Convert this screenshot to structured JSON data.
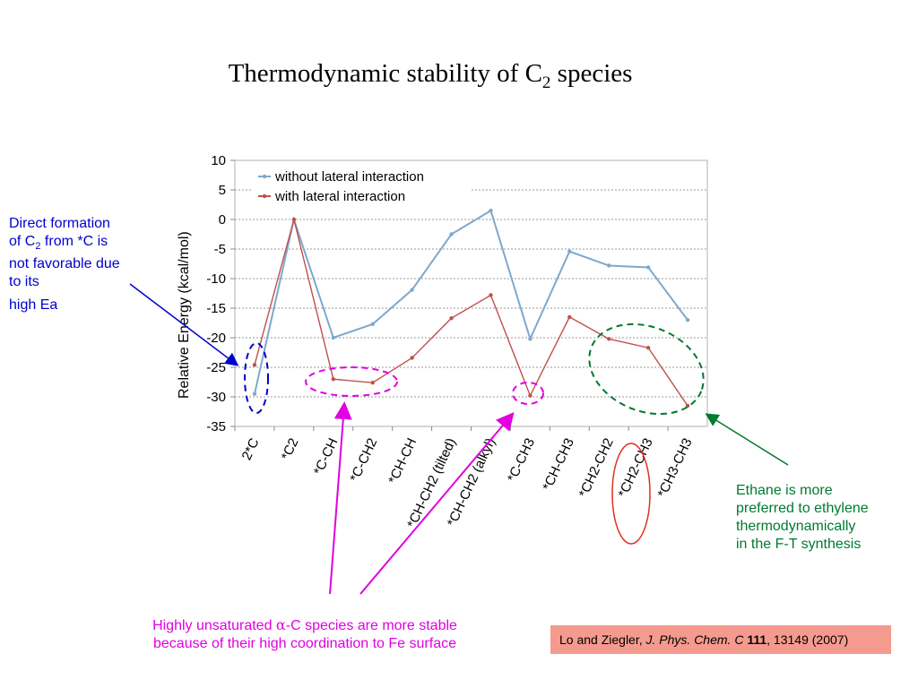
{
  "slide": {
    "title_main": "Thermodynamic stability of C",
    "title_sub": "2",
    "title_end": " species"
  },
  "chart_data": {
    "type": "line",
    "ylabel": "Relative Energy  (kcal/mol)",
    "ylim": [
      -35,
      10
    ],
    "yticks": [
      10,
      5,
      0,
      -5,
      -10,
      -15,
      -20,
      -25,
      -30,
      -35
    ],
    "grid": true,
    "legend_position": "top-left",
    "categories": [
      "2*C",
      "*C2",
      "*C-CH",
      "*C-CH2",
      "*CH-CH",
      "*CH-CH2 (tilted)",
      "*CH-CH2 (alkyl)",
      "*C-CH3",
      "*CH-CH3",
      "*CH2-CH2",
      "*CH2-CH3",
      "*CH3-CH3"
    ],
    "series": [
      {
        "name": "without lateral interaction",
        "color": "#7fa8cc",
        "values": [
          -29.5,
          0,
          -20,
          -17.7,
          -11.9,
          -2.5,
          1.5,
          -20.2,
          -5.4,
          -7.8,
          -8.1,
          -17
        ]
      },
      {
        "name": "with lateral interaction",
        "color": "#c0504d",
        "values": [
          -24.6,
          0,
          -27,
          -27.6,
          -23.4,
          -16.7,
          -12.8,
          -29.8,
          -16.5,
          -20.2,
          -21.7,
          -31.5
        ]
      }
    ]
  },
  "annotations": {
    "direct_line1": "Direct formation",
    "direct_of": "of C",
    "direct_sub": "2",
    "direct_rest": " from *C is",
    "direct_line3": "not favorable due",
    "direct_line4": "to its",
    "direct_line5": "high Ea",
    "ethane_line1": "Ethane is more",
    "ethane_line2": "preferred to ethylene",
    "ethane_line3": "thermodynamically",
    "ethane_line4": "in the F-T synthesis",
    "alpha_line1_a": "Highly unsaturated ",
    "alpha_symbol": "α",
    "alpha_line1_b": "-C species are more stable",
    "alpha_line2": "because of their high coordination to Fe surface",
    "color_blue": "#0000cc",
    "color_green": "#007a2f",
    "color_magenta": "#e000e0",
    "color_red": "#e03020"
  },
  "reference": {
    "authors": "Lo and Ziegler, ",
    "journal": "J. Phys. Chem. C",
    "volume": "111",
    "pages": ", 13149 (2007)",
    "bg_color": "#f59a8e"
  }
}
